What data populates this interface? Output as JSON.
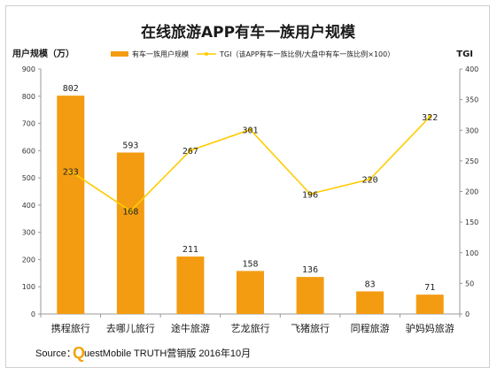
{
  "chart_data": {
    "type": "bar",
    "title": "在线旅游APP有车一族用户规模",
    "categories": [
      "携程旅行",
      "去哪儿旅行",
      "途牛旅游",
      "艺龙旅行",
      "飞猪旅行",
      "同程旅游",
      "驴妈妈旅游"
    ],
    "series": [
      {
        "name": "有车一族用户规模",
        "type": "bar",
        "axis": "left",
        "values": [
          802,
          593,
          211,
          158,
          136,
          83,
          71
        ]
      },
      {
        "name": "TGI（该APP有车一族比例/大盘中有车一族比例×100）",
        "type": "line",
        "axis": "right",
        "values": [
          233,
          168,
          267,
          301,
          196,
          220,
          322
        ]
      }
    ],
    "ylabel": "用户规模（万）",
    "y2label": "TGI",
    "ylim": [
      0,
      900
    ],
    "yticks": [
      0,
      100,
      200,
      300,
      400,
      500,
      600,
      700,
      800,
      900
    ],
    "y2lim": [
      0,
      400
    ],
    "y2ticks": [
      0,
      50,
      100,
      150,
      200,
      250,
      300,
      350,
      400
    ],
    "grid": false,
    "legend_position": "top",
    "colors": {
      "bar": "#f39c12",
      "line": "#ffcc00"
    }
  },
  "source": {
    "prefix": "Source：",
    "logo_letter": "Q",
    "text": "uestMobile TRUTH营销版 2016年10月"
  }
}
